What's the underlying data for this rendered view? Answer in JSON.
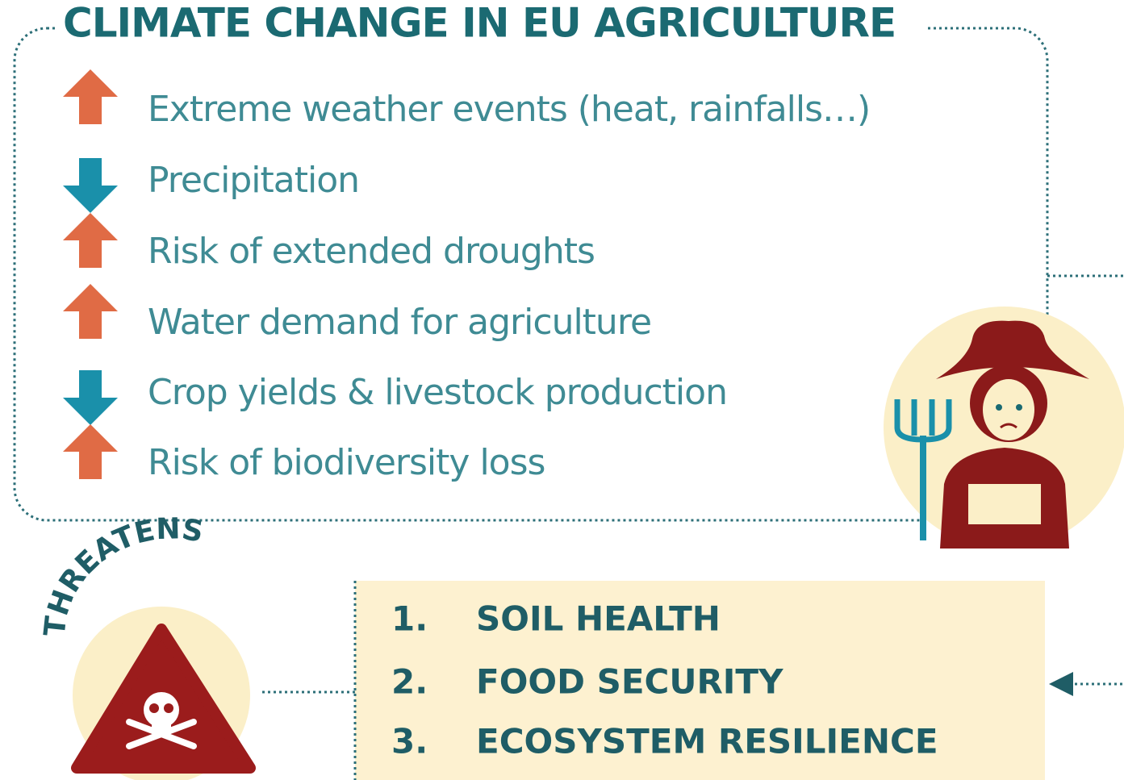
{
  "title": "CLIMATE CHANGE IN EU AGRICULTURE",
  "items": [
    "Extreme weather events (heat, rainfalls…)",
    "Precipitation",
    "Risk of extended droughts",
    "Water demand for agriculture",
    "Crop yields & livestock production",
    "Risk of biodiversity loss"
  ],
  "threat_label": "THREATENS",
  "threatened": [
    {
      "number": "1.",
      "label": "SOIL HEALTH"
    },
    {
      "number": "2.",
      "label": "FOOD SECURITY"
    },
    {
      "number": "3.",
      "label": "ECOSYSTEM RESILIENCE"
    }
  ]
}
